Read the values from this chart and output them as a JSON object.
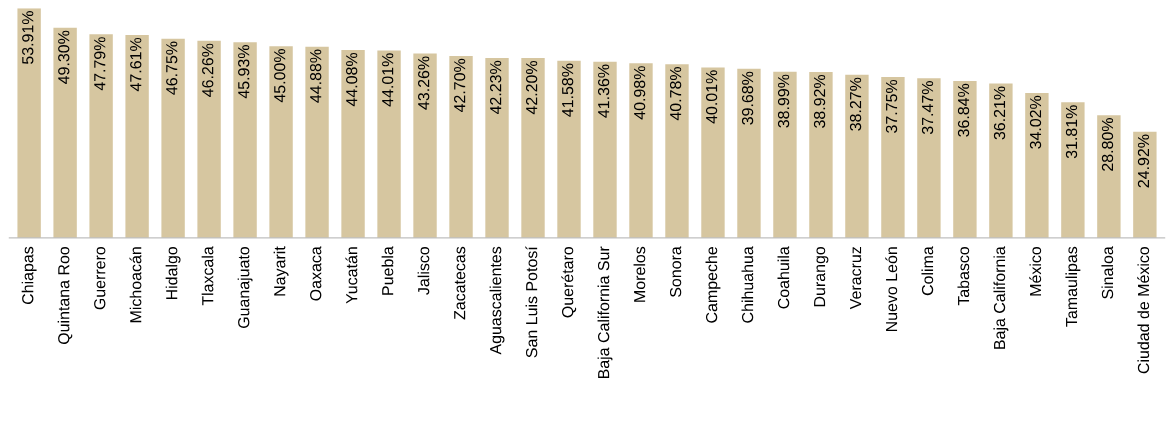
{
  "chart_data": {
    "type": "bar",
    "color": "#d6c6a0",
    "grid": false,
    "legend": false,
    "categories": [
      "Chiapas",
      "Quintana Roo",
      "Guerrero",
      "Michoacán",
      "Hidalgo",
      "Tlaxcala",
      "Guanajuato",
      "Nayarit",
      "Oaxaca",
      "Yucatán",
      "Puebla",
      "Jalisco",
      "Zacatecas",
      "Aguascalientes",
      "San Luis Potosí",
      "Querétaro",
      "Baja California Sur",
      "Morelos",
      "Sonora",
      "Campeche",
      "Chihuahua",
      "Coahuila",
      "Durango",
      "Veracruz",
      "Nuevo León",
      "Colima",
      "Tabasco",
      "Baja California",
      "México",
      "Tamaulipas",
      "Sinaloa",
      "Ciudad de México"
    ],
    "values": [
      53.91,
      49.3,
      47.79,
      47.61,
      46.75,
      46.26,
      45.93,
      45.0,
      44.88,
      44.08,
      44.01,
      43.26,
      42.7,
      42.23,
      42.2,
      41.58,
      41.36,
      40.98,
      40.78,
      40.01,
      39.68,
      38.99,
      38.92,
      38.27,
      37.75,
      37.47,
      36.84,
      36.21,
      34.02,
      31.81,
      28.8,
      24.92
    ],
    "value_labels": [
      "53.91%",
      "49.30%",
      "47.79%",
      "47.61%",
      "46.75%",
      "46.26%",
      "45.93%",
      "45.00%",
      "44.88%",
      "44.08%",
      "44.01%",
      "43.26%",
      "42.70%",
      "42.23%",
      "42.20%",
      "41.58%",
      "41.36%",
      "40.98%",
      "40.78%",
      "40.01%",
      "39.68%",
      "38.99%",
      "38.92%",
      "38.27%",
      "37.75%",
      "37.47%",
      "36.84%",
      "36.21%",
      "34.02%",
      "31.81%",
      "28.80%",
      "24.92%"
    ]
  }
}
